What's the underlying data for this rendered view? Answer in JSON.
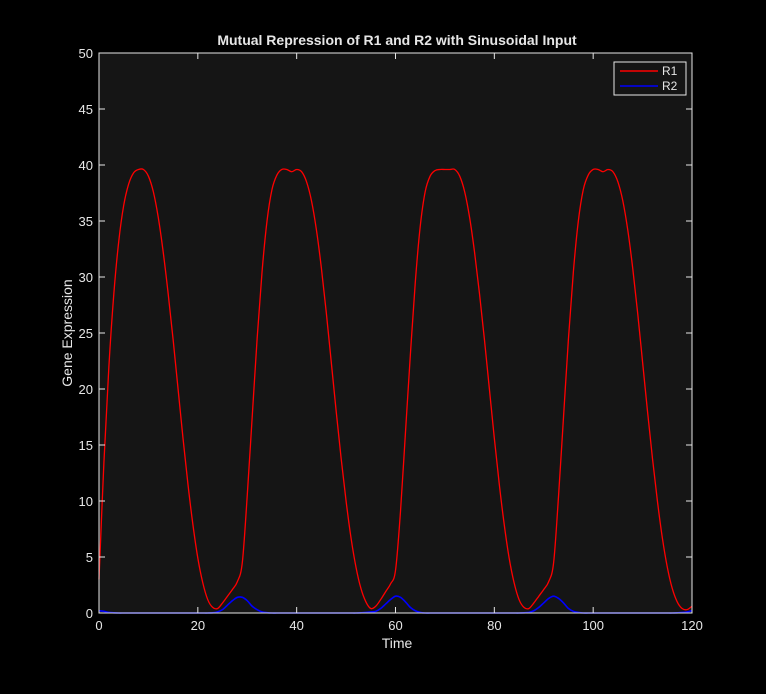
{
  "colors": {
    "figure_background": "#000000",
    "axes_background": "#151515",
    "axes_foreground": "#e6e6e6",
    "series_r1": "#ff0000",
    "series_r2": "#0000ff"
  },
  "chart_data": {
    "type": "line",
    "title": "Mutual Repression of R1 and R2 with Sinusoidal Input",
    "xlabel": "Time",
    "ylabel": "Gene Expression",
    "xlim": [
      0,
      120
    ],
    "ylim": [
      0,
      50
    ],
    "xticks": [
      "0",
      "20",
      "40",
      "60",
      "80",
      "100",
      "120"
    ],
    "yticks": [
      "0",
      "5",
      "10",
      "15",
      "20",
      "25",
      "30",
      "35",
      "40",
      "45",
      "50"
    ],
    "grid": false,
    "legend_position": "top-right",
    "series": [
      {
        "name": "R1",
        "color": "#ff0000",
        "x": [
          0,
          1,
          2,
          3,
          4,
          5,
          6,
          7,
          8,
          9,
          10,
          11,
          12,
          13,
          14,
          15,
          16,
          17,
          18,
          19,
          20,
          21,
          22,
          23,
          24,
          25,
          26,
          27,
          28,
          29,
          30,
          31,
          32,
          33,
          34,
          35,
          36,
          37,
          38,
          39,
          40,
          41,
          42,
          43,
          44,
          45,
          46,
          47,
          48,
          49,
          50,
          51,
          52,
          53,
          54,
          55,
          56,
          57,
          58,
          59,
          60,
          61,
          62,
          63,
          64,
          65,
          66,
          67,
          68,
          69,
          70,
          71,
          72,
          73,
          74,
          75,
          76,
          77,
          78,
          79,
          80,
          81,
          82,
          83,
          84,
          85,
          86,
          87,
          88,
          89,
          90,
          91,
          92,
          93,
          94,
          95,
          96,
          97,
          98,
          99,
          100,
          101,
          102,
          103,
          104,
          105,
          106,
          107,
          108,
          109,
          110,
          111,
          112,
          113,
          114,
          115,
          116,
          117,
          118,
          119,
          120
        ],
        "y": [
          3.0,
          13.5,
          22.0,
          28.5,
          33.2,
          36.4,
          38.3,
          39.3,
          39.6,
          39.6,
          39.0,
          37.6,
          35.3,
          32.2,
          28.5,
          24.4,
          20.0,
          15.6,
          11.5,
          7.9,
          4.9,
          2.7,
          1.2,
          0.5,
          0.4,
          0.9,
          1.5,
          2.1,
          2.8,
          4.5,
          10.5,
          17.5,
          24.5,
          30.5,
          35.0,
          37.8,
          39.1,
          39.6,
          39.6,
          39.4,
          39.6,
          39.4,
          38.5,
          36.8,
          34.2,
          30.8,
          26.8,
          22.4,
          18.0,
          13.8,
          10.0,
          6.7,
          4.1,
          2.2,
          1.0,
          0.4,
          0.6,
          1.2,
          1.9,
          2.6,
          3.8,
          9.0,
          16.0,
          23.0,
          29.5,
          34.5,
          37.6,
          39.0,
          39.5,
          39.6,
          39.6,
          39.6,
          39.6,
          39.0,
          37.6,
          35.3,
          32.2,
          28.5,
          24.4,
          20.0,
          15.6,
          11.5,
          7.9,
          4.9,
          2.7,
          1.2,
          0.5,
          0.4,
          0.9,
          1.5,
          2.1,
          2.8,
          4.5,
          10.5,
          17.5,
          24.5,
          30.5,
          35.0,
          37.8,
          39.1,
          39.6,
          39.6,
          39.4,
          39.6,
          39.4,
          38.5,
          36.8,
          34.2,
          30.8,
          26.8,
          22.4,
          18.0,
          13.8,
          10.0,
          6.7,
          4.1,
          2.2,
          1.0,
          0.4,
          0.3,
          0.6
        ]
      },
      {
        "name": "R2",
        "color": "#0000ff",
        "x": [
          0,
          1,
          2,
          3,
          4,
          5,
          6,
          7,
          8,
          9,
          10,
          11,
          12,
          13,
          14,
          15,
          16,
          17,
          18,
          19,
          20,
          21,
          22,
          23,
          24,
          25,
          26,
          27,
          28,
          29,
          30,
          31,
          32,
          33,
          34,
          35,
          36,
          37,
          38,
          39,
          40,
          41,
          42,
          43,
          44,
          45,
          46,
          47,
          48,
          49,
          50,
          51,
          52,
          53,
          54,
          55,
          56,
          57,
          58,
          59,
          60,
          61,
          62,
          63,
          64,
          65,
          66,
          67,
          68,
          69,
          70,
          71,
          72,
          73,
          74,
          75,
          76,
          77,
          78,
          79,
          80,
          81,
          82,
          83,
          84,
          85,
          86,
          87,
          88,
          89,
          90,
          91,
          92,
          93,
          94,
          95,
          96,
          97,
          98,
          99,
          100,
          101,
          102,
          103,
          104,
          105,
          106,
          107,
          108,
          109,
          110,
          111,
          112,
          113,
          114,
          115,
          116,
          117,
          118,
          119,
          120
        ],
        "y": [
          0.2,
          0.15,
          0.05,
          0.02,
          0,
          0,
          0,
          0,
          0,
          0,
          0,
          0,
          0,
          0,
          0,
          0,
          0,
          0,
          0,
          0,
          0,
          0,
          0,
          0.02,
          0.1,
          0.3,
          0.7,
          1.1,
          1.4,
          1.4,
          1.1,
          0.6,
          0.3,
          0.1,
          0.03,
          0,
          0,
          0,
          0,
          0,
          0,
          0,
          0,
          0,
          0,
          0,
          0,
          0,
          0,
          0,
          0,
          0,
          0,
          0.02,
          0.05,
          0.1,
          0.15,
          0.4,
          0.8,
          1.2,
          1.5,
          1.4,
          1.0,
          0.5,
          0.2,
          0.05,
          0,
          0,
          0,
          0,
          0,
          0,
          0,
          0,
          0,
          0,
          0,
          0,
          0,
          0,
          0,
          0,
          0,
          0,
          0,
          0,
          0.02,
          0.05,
          0.2,
          0.5,
          0.9,
          1.3,
          1.5,
          1.3,
          0.9,
          0.4,
          0.15,
          0.05,
          0,
          0,
          0,
          0,
          0,
          0,
          0,
          0,
          0,
          0,
          0,
          0,
          0,
          0,
          0,
          0,
          0,
          0,
          0,
          0.02,
          0.05,
          0.1,
          0.2
        ]
      }
    ]
  }
}
